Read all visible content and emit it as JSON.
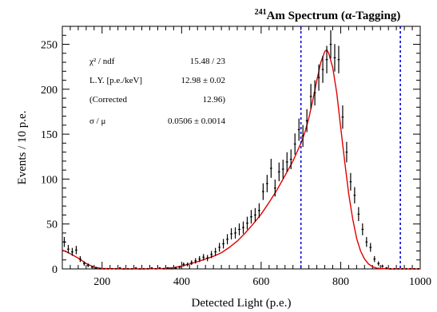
{
  "chart_data": {
    "type": "scatter",
    "title_sup": "241",
    "title_main": "Am Spectrum (α-Tagging)",
    "xlabel": "Detected Light (p.e.)",
    "ylabel": "Events / 10 p.e.",
    "xlim": [
      100,
      1000
    ],
    "ylim": [
      0,
      270
    ],
    "xticks": [
      200,
      400,
      600,
      800,
      1000
    ],
    "yticks": [
      0,
      50,
      100,
      150,
      200,
      250
    ],
    "grid": false,
    "stats_box": {
      "rows": [
        {
          "label": "χ² / ndf",
          "value": "15.48 / 23"
        },
        {
          "label": "L.Y. [p.e./keV]",
          "value": "12.98 ± 0.02"
        },
        {
          "label": "(Corrected",
          "value": "12.96)"
        },
        {
          "label": "σ / μ",
          "value": "0.0506 ± 0.0014"
        }
      ]
    },
    "vlines": [
      700,
      950
    ],
    "colors": {
      "data": "#000000",
      "fit": "#e00000",
      "vline": "#0000dd"
    },
    "series": [
      {
        "type": "errorbar",
        "x": [
          105,
          115,
          125,
          135,
          145,
          155,
          165,
          175,
          185,
          195,
          205,
          215,
          225,
          235,
          245,
          255,
          265,
          275,
          285,
          295,
          305,
          315,
          325,
          335,
          345,
          355,
          365,
          375,
          385,
          395,
          405,
          415,
          425,
          435,
          445,
          455,
          465,
          475,
          485,
          495,
          505,
          515,
          525,
          535,
          545,
          555,
          565,
          575,
          585,
          595,
          605,
          615,
          625,
          635,
          645,
          655,
          665,
          675,
          685,
          695,
          705,
          715,
          725,
          735,
          745,
          755,
          765,
          775,
          785,
          795,
          805,
          815,
          825,
          835,
          845,
          855,
          865,
          875,
          885,
          895,
          905,
          915,
          925,
          935,
          945,
          955,
          965,
          975,
          985,
          995
        ],
        "y": [
          30,
          22,
          19,
          21,
          11,
          6,
          4,
          2,
          1,
          0,
          0,
          0,
          0,
          0,
          1,
          0,
          0,
          0,
          1,
          0,
          0,
          0,
          1,
          0,
          1,
          0,
          1,
          0,
          1,
          2,
          5,
          5,
          7,
          9,
          11,
          13,
          12,
          16,
          19,
          24,
          28,
          33,
          39,
          40,
          44,
          46,
          51,
          58,
          60,
          65,
          86,
          95,
          112,
          90,
          108,
          111,
          119,
          122,
          139,
          155,
          148,
          165,
          192,
          196,
          213,
          222,
          233,
          250,
          235,
          233,
          169,
          130,
          97,
          82,
          61,
          44,
          30,
          24,
          11,
          6,
          3,
          1,
          0,
          0,
          0,
          0,
          0,
          0,
          0,
          0
        ],
        "err": [
          5.5,
          4.7,
          4.4,
          4.6,
          3.3,
          2.4,
          2.0,
          1.4,
          1.0,
          1,
          1,
          1,
          1,
          1,
          1,
          1,
          1,
          1,
          1,
          1,
          1,
          1,
          1,
          1,
          1,
          1,
          1,
          1,
          1,
          1.4,
          2.2,
          2.2,
          2.6,
          3,
          3.3,
          3.6,
          3.5,
          4,
          4.4,
          4.9,
          5.3,
          5.7,
          6.2,
          6.3,
          6.6,
          6.8,
          7.1,
          7.6,
          7.7,
          8.1,
          9.3,
          9.7,
          10.6,
          9.5,
          10.4,
          10.5,
          10.9,
          11,
          11.8,
          12.4,
          12.2,
          12.8,
          13.9,
          14,
          14.6,
          14.9,
          15.3,
          15.8,
          15.3,
          15.3,
          13,
          11.4,
          9.8,
          9.1,
          7.8,
          6.6,
          5.5,
          4.9,
          3.3,
          2.4,
          1.7,
          1,
          1,
          1,
          1,
          1,
          1,
          1,
          1,
          1
        ]
      },
      {
        "type": "fit-curve",
        "x": [
          100,
          120,
          140,
          160,
          180,
          200,
          250,
          300,
          350,
          380,
          400,
          420,
          440,
          460,
          480,
          500,
          520,
          540,
          560,
          580,
          600,
          620,
          640,
          660,
          680,
          700,
          710,
          720,
          730,
          740,
          750,
          760,
          765,
          770,
          780,
          790,
          800,
          810,
          820,
          830,
          840,
          850,
          860,
          870,
          880,
          890,
          900,
          920,
          950,
          1000
        ],
        "y": [
          21,
          17,
          12,
          6,
          2,
          0.5,
          0,
          0,
          0.3,
          1.5,
          3,
          5.5,
          8,
          11,
          14,
          18,
          24,
          31,
          40,
          50,
          61,
          74,
          88,
          104,
          120,
          140,
          152,
          168,
          188,
          210,
          230,
          242,
          244,
          240,
          224,
          196,
          158,
          120,
          84,
          56,
          34,
          20,
          11,
          5.5,
          2.5,
          1,
          0.4,
          0,
          0,
          0
        ]
      }
    ]
  }
}
